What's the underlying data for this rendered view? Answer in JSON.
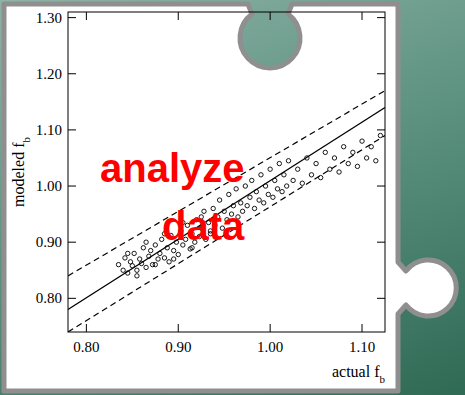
{
  "chart_data": {
    "type": "scatter",
    "x_label": {
      "text": "actual f",
      "subscript": "b"
    },
    "y_label": {
      "text": "modeled f",
      "subscript": "b"
    },
    "annotations": [
      {
        "text": "analyze"
      },
      {
        "text": "data"
      }
    ],
    "xlim": [
      0.78,
      1.125
    ],
    "ylim": [
      0.74,
      1.31
    ],
    "xticks": [
      {
        "value": 0.8,
        "label": "0.80"
      },
      {
        "value": 0.9,
        "label": "0.90"
      },
      {
        "value": 1.0,
        "label": "1.00"
      },
      {
        "value": 1.1,
        "label": "1.10"
      }
    ],
    "yticks": [
      {
        "value": 0.8,
        "label": "0.80"
      },
      {
        "value": 0.9,
        "label": "0.90"
      },
      {
        "value": 1.0,
        "label": "1.00"
      },
      {
        "value": 1.1,
        "label": "1.10"
      },
      {
        "value": 1.2,
        "label": "1.20"
      },
      {
        "value": 1.3,
        "label": "1.30"
      }
    ],
    "grid": false,
    "series": [
      {
        "type": "scatter",
        "marker": "circle",
        "color": "#000000",
        "x": [
          0.835,
          0.84,
          0.842,
          0.845,
          0.848,
          0.85,
          0.852,
          0.855,
          0.858,
          0.86,
          0.862,
          0.865,
          0.868,
          0.87,
          0.872,
          0.875,
          0.878,
          0.88,
          0.882,
          0.885,
          0.888,
          0.89,
          0.892,
          0.895,
          0.898,
          0.9,
          0.903,
          0.905,
          0.908,
          0.91,
          0.913,
          0.915,
          0.918,
          0.92,
          0.923,
          0.925,
          0.928,
          0.93,
          0.933,
          0.935,
          0.938,
          0.94,
          0.943,
          0.945,
          0.948,
          0.95,
          0.953,
          0.955,
          0.958,
          0.96,
          0.963,
          0.965,
          0.968,
          0.97,
          0.973,
          0.975,
          0.978,
          0.98,
          0.983,
          0.985,
          0.988,
          0.99,
          0.993,
          0.995,
          0.998,
          1.0,
          1.003,
          1.005,
          1.008,
          1.01,
          1.013,
          1.015,
          1.018,
          1.02,
          1.025,
          1.03,
          1.035,
          1.04,
          1.045,
          1.05,
          1.055,
          1.06,
          1.065,
          1.07,
          1.075,
          1.08,
          1.085,
          1.09,
          1.095,
          1.1,
          1.105,
          1.11,
          1.115,
          1.12,
          0.845,
          0.855,
          0.865,
          0.875,
          0.885,
          0.895,
          0.905,
          0.915,
          0.925,
          0.935
        ],
        "values": [
          0.86,
          0.85,
          0.872,
          0.845,
          0.865,
          0.858,
          0.88,
          0.85,
          0.87,
          0.862,
          0.89,
          0.855,
          0.875,
          0.885,
          0.86,
          0.895,
          0.87,
          0.88,
          0.905,
          0.872,
          0.89,
          0.865,
          0.912,
          0.885,
          0.9,
          0.878,
          0.92,
          0.895,
          0.905,
          0.93,
          0.888,
          0.915,
          0.9,
          0.94,
          0.91,
          0.925,
          0.955,
          0.905,
          0.935,
          0.92,
          0.96,
          0.93,
          0.945,
          0.975,
          0.925,
          0.955,
          0.94,
          0.985,
          0.95,
          0.965,
          0.995,
          0.945,
          0.97,
          0.955,
          1.0,
          0.965,
          0.98,
          1.01,
          0.96,
          0.99,
          0.975,
          1.02,
          0.97,
          1.0,
          0.985,
          1.03,
          0.98,
          1.01,
          0.995,
          1.04,
          0.99,
          1.02,
          1.0,
          1.045,
          1.01,
          1.03,
          1.005,
          1.05,
          1.02,
          1.04,
          1.015,
          1.06,
          1.03,
          1.05,
          1.025,
          1.07,
          1.04,
          1.06,
          1.035,
          1.08,
          1.05,
          1.07,
          1.045,
          1.09,
          0.88,
          0.84,
          0.9,
          0.86,
          0.915,
          0.87,
          0.935,
          0.89,
          0.945,
          0.915
        ]
      },
      {
        "type": "line",
        "line_style": "solid",
        "color": "#000000",
        "x": [
          0.78,
          1.125
        ],
        "values": [
          0.78,
          1.14
        ]
      },
      {
        "type": "line",
        "line_style": "dashed",
        "color": "#000000",
        "x": [
          0.78,
          1.125
        ],
        "values": [
          0.84,
          1.17
        ]
      },
      {
        "type": "line",
        "line_style": "dashed",
        "color": "#000000",
        "x": [
          0.78,
          1.125
        ],
        "values": [
          0.74,
          1.09
        ]
      }
    ]
  }
}
